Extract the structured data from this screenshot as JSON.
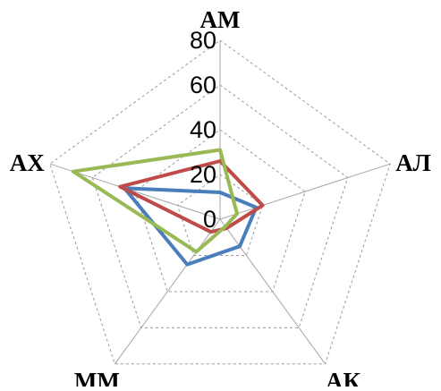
{
  "chart_data": {
    "type": "radar",
    "categories": [
      "АМ",
      "АЛ",
      "АК",
      "ММ",
      "АХ"
    ],
    "rlim": [
      0,
      80
    ],
    "tick_values": [
      0,
      20,
      40,
      60,
      80
    ],
    "tick_labels": [
      "0",
      "20",
      "40",
      "60",
      "80"
    ],
    "grid": true,
    "legend": "none",
    "series": [
      {
        "color": "#4a7ebb",
        "values": [
          12,
          17,
          15,
          25,
          45
        ]
      },
      {
        "color": "#be4b48",
        "values": [
          26,
          20,
          5,
          7,
          47
        ]
      },
      {
        "color": "#98b954",
        "values": [
          31,
          8,
          4,
          18,
          69
        ]
      }
    ]
  }
}
